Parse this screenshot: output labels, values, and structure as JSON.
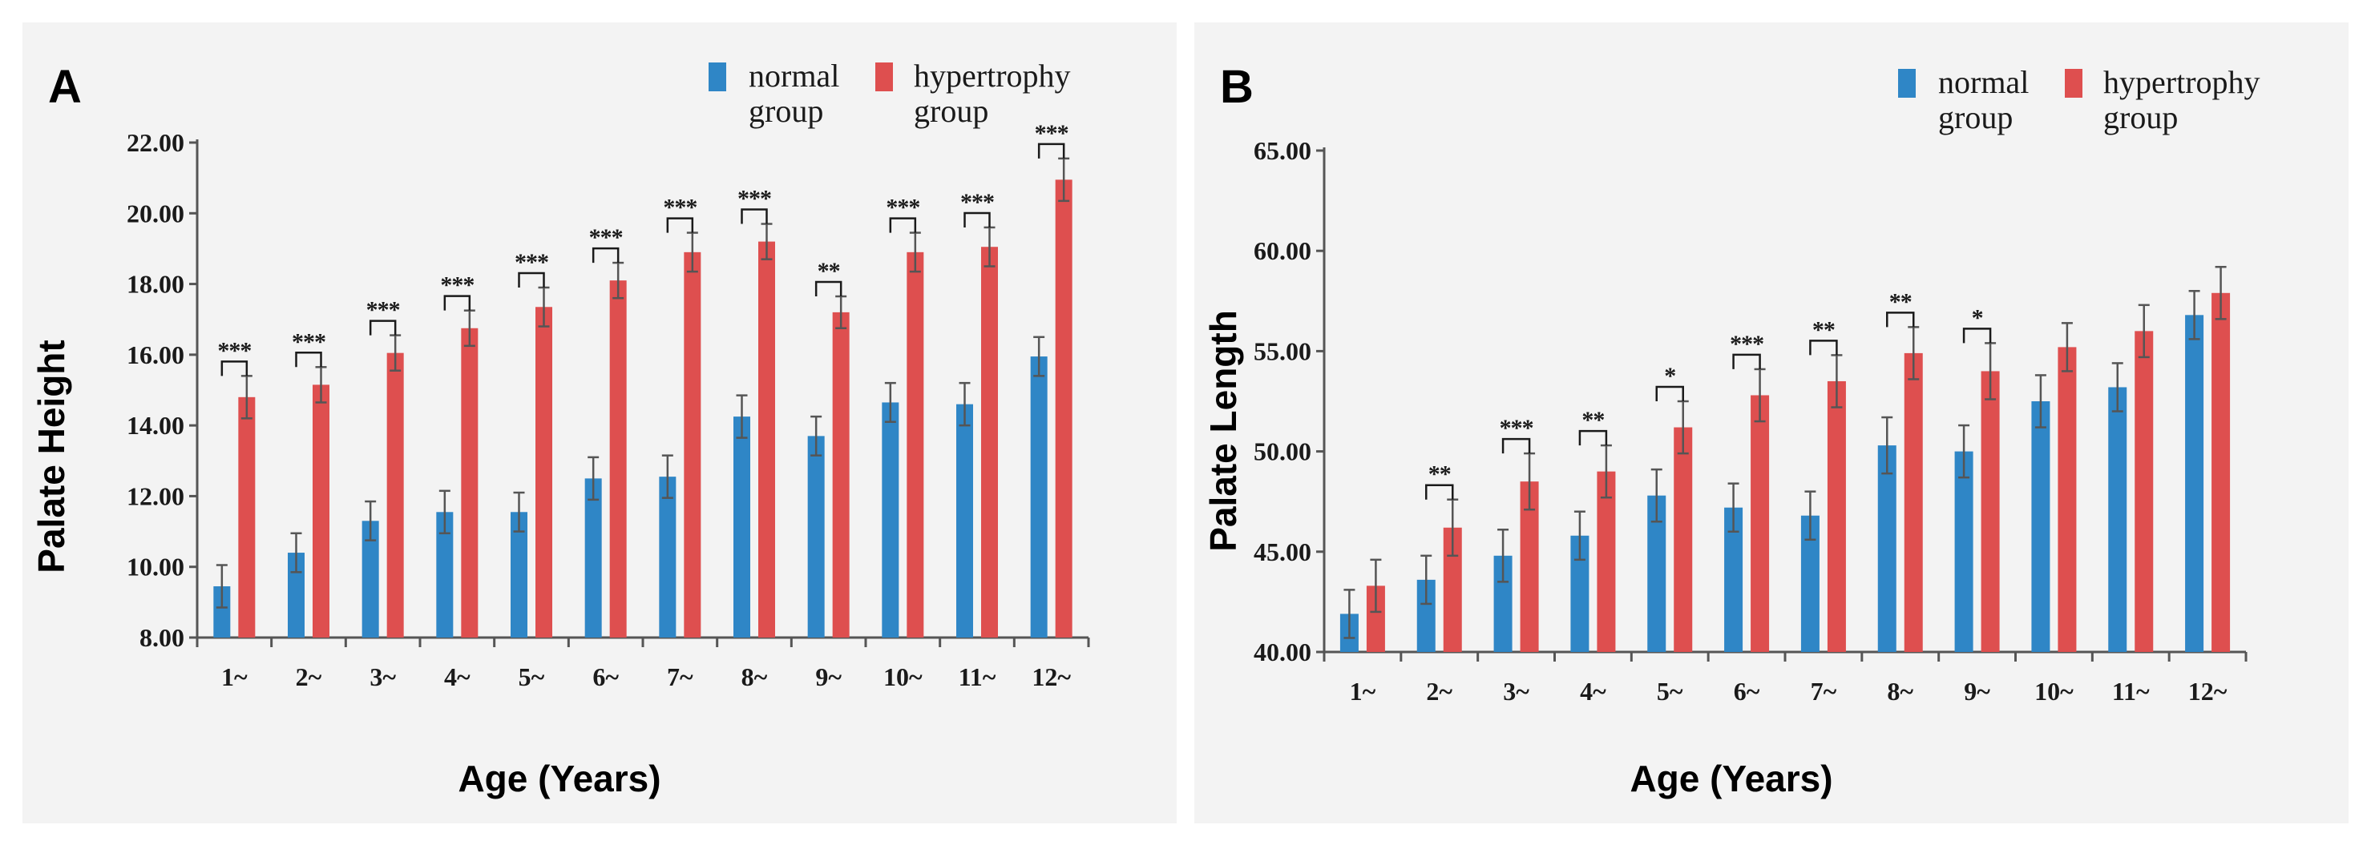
{
  "colors": {
    "normal": "#2f86c6",
    "hypertrophy": "#de4f4f",
    "axis": "#555555",
    "error": "#555555"
  },
  "charts": [
    {
      "panel": "A",
      "type": "bar",
      "categories": [
        "1~",
        "2~",
        "3~",
        "4~",
        "5~",
        "6~",
        "7~",
        "8~",
        "9~",
        "10~",
        "11~",
        "12~"
      ],
      "series": [
        {
          "name": "normal group",
          "label_lines": [
            "normal",
            "group"
          ],
          "values": [
            9.45,
            10.4,
            11.3,
            11.55,
            11.55,
            12.5,
            12.55,
            14.25,
            13.7,
            14.65,
            14.6,
            15.95
          ],
          "errors": [
            0.6,
            0.55,
            0.55,
            0.6,
            0.55,
            0.6,
            0.6,
            0.6,
            0.55,
            0.55,
            0.6,
            0.55
          ]
        },
        {
          "name": "hypertrophy group",
          "label_lines": [
            "hypertrophy",
            "group"
          ],
          "values": [
            14.8,
            15.15,
            16.05,
            16.75,
            17.35,
            18.1,
            18.9,
            19.2,
            17.2,
            18.9,
            19.05,
            20.95
          ],
          "errors": [
            0.6,
            0.5,
            0.5,
            0.5,
            0.55,
            0.5,
            0.55,
            0.5,
            0.45,
            0.55,
            0.55,
            0.6
          ]
        }
      ],
      "significance": [
        "***",
        "***",
        "***",
        "***",
        "***",
        "***",
        "***",
        "***",
        "**",
        "***",
        "***",
        "***"
      ],
      "ylim": [
        8,
        22
      ],
      "yticks": [
        "8.00",
        "10.00",
        "12.00",
        "14.00",
        "16.00",
        "18.00",
        "20.00",
        "22.00"
      ],
      "xlabel": "Age (Years)",
      "ylabel": "Palate Height"
    },
    {
      "panel": "B",
      "type": "bar",
      "categories": [
        "1~",
        "2~",
        "3~",
        "4~",
        "5~",
        "6~",
        "7~",
        "8~",
        "9~",
        "10~",
        "11~",
        "12~"
      ],
      "series": [
        {
          "name": "normal group",
          "label_lines": [
            "normal",
            "group"
          ],
          "values": [
            41.9,
            43.6,
            44.8,
            45.8,
            47.8,
            47.2,
            46.8,
            50.3,
            50.0,
            52.5,
            53.2,
            56.8
          ],
          "errors": [
            1.2,
            1.2,
            1.3,
            1.2,
            1.3,
            1.2,
            1.2,
            1.4,
            1.3,
            1.3,
            1.2,
            1.2
          ]
        },
        {
          "name": "hypertrophy group",
          "label_lines": [
            "hypertrophy",
            "group"
          ],
          "values": [
            43.3,
            46.2,
            48.5,
            49.0,
            51.2,
            52.8,
            53.5,
            54.9,
            54.0,
            55.2,
            56.0,
            57.9
          ],
          "errors": [
            1.3,
            1.4,
            1.4,
            1.3,
            1.3,
            1.3,
            1.3,
            1.3,
            1.4,
            1.2,
            1.3,
            1.3
          ]
        }
      ],
      "significance": [
        "",
        "**",
        "***",
        "**",
        "*",
        "***",
        "**",
        "**",
        "*",
        "",
        "",
        ""
      ],
      "ylim": [
        40,
        65
      ],
      "yticks": [
        "40.00",
        "45.00",
        "50.00",
        "55.00",
        "60.00",
        "65.00"
      ],
      "xlabel": "Age (Years)",
      "ylabel": "Palate Length"
    }
  ]
}
